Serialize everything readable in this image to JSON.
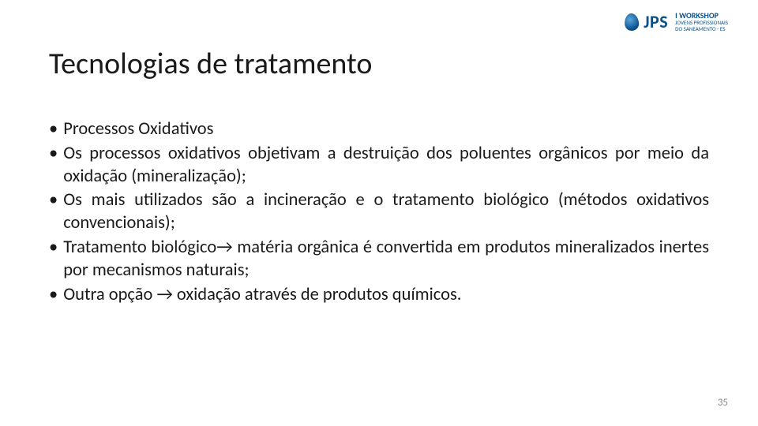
{
  "logo": {
    "brand": "JPS",
    "workshop": "I WORKSHOP",
    "sub1": "JOVENS PROFISSIONAIS",
    "sub2": "DO SANEAMENTO - ES"
  },
  "title": "Tecnologias de tratamento",
  "bullets": [
    "Processos Oxidativos",
    "Os processos oxidativos objetivam a destruição dos poluentes orgânicos por meio da oxidação (mineralização);",
    "Os mais utilizados são a incineração e o tratamento biológico (métodos oxidativos convencionais);",
    "Tratamento biológico→ matéria orgânica é convertida em produtos mineralizados inertes por mecanismos naturais;",
    "Outra opção → oxidação através de produtos químicos."
  ],
  "pageNumber": "35",
  "colors": {
    "text": "#1a1a1a",
    "pagenum": "#8a8a8a",
    "brand": "#0b4f8a",
    "background": "#ffffff"
  },
  "fonts": {
    "title_size": 38,
    "body_size": 22.5,
    "pagenum_size": 13
  }
}
